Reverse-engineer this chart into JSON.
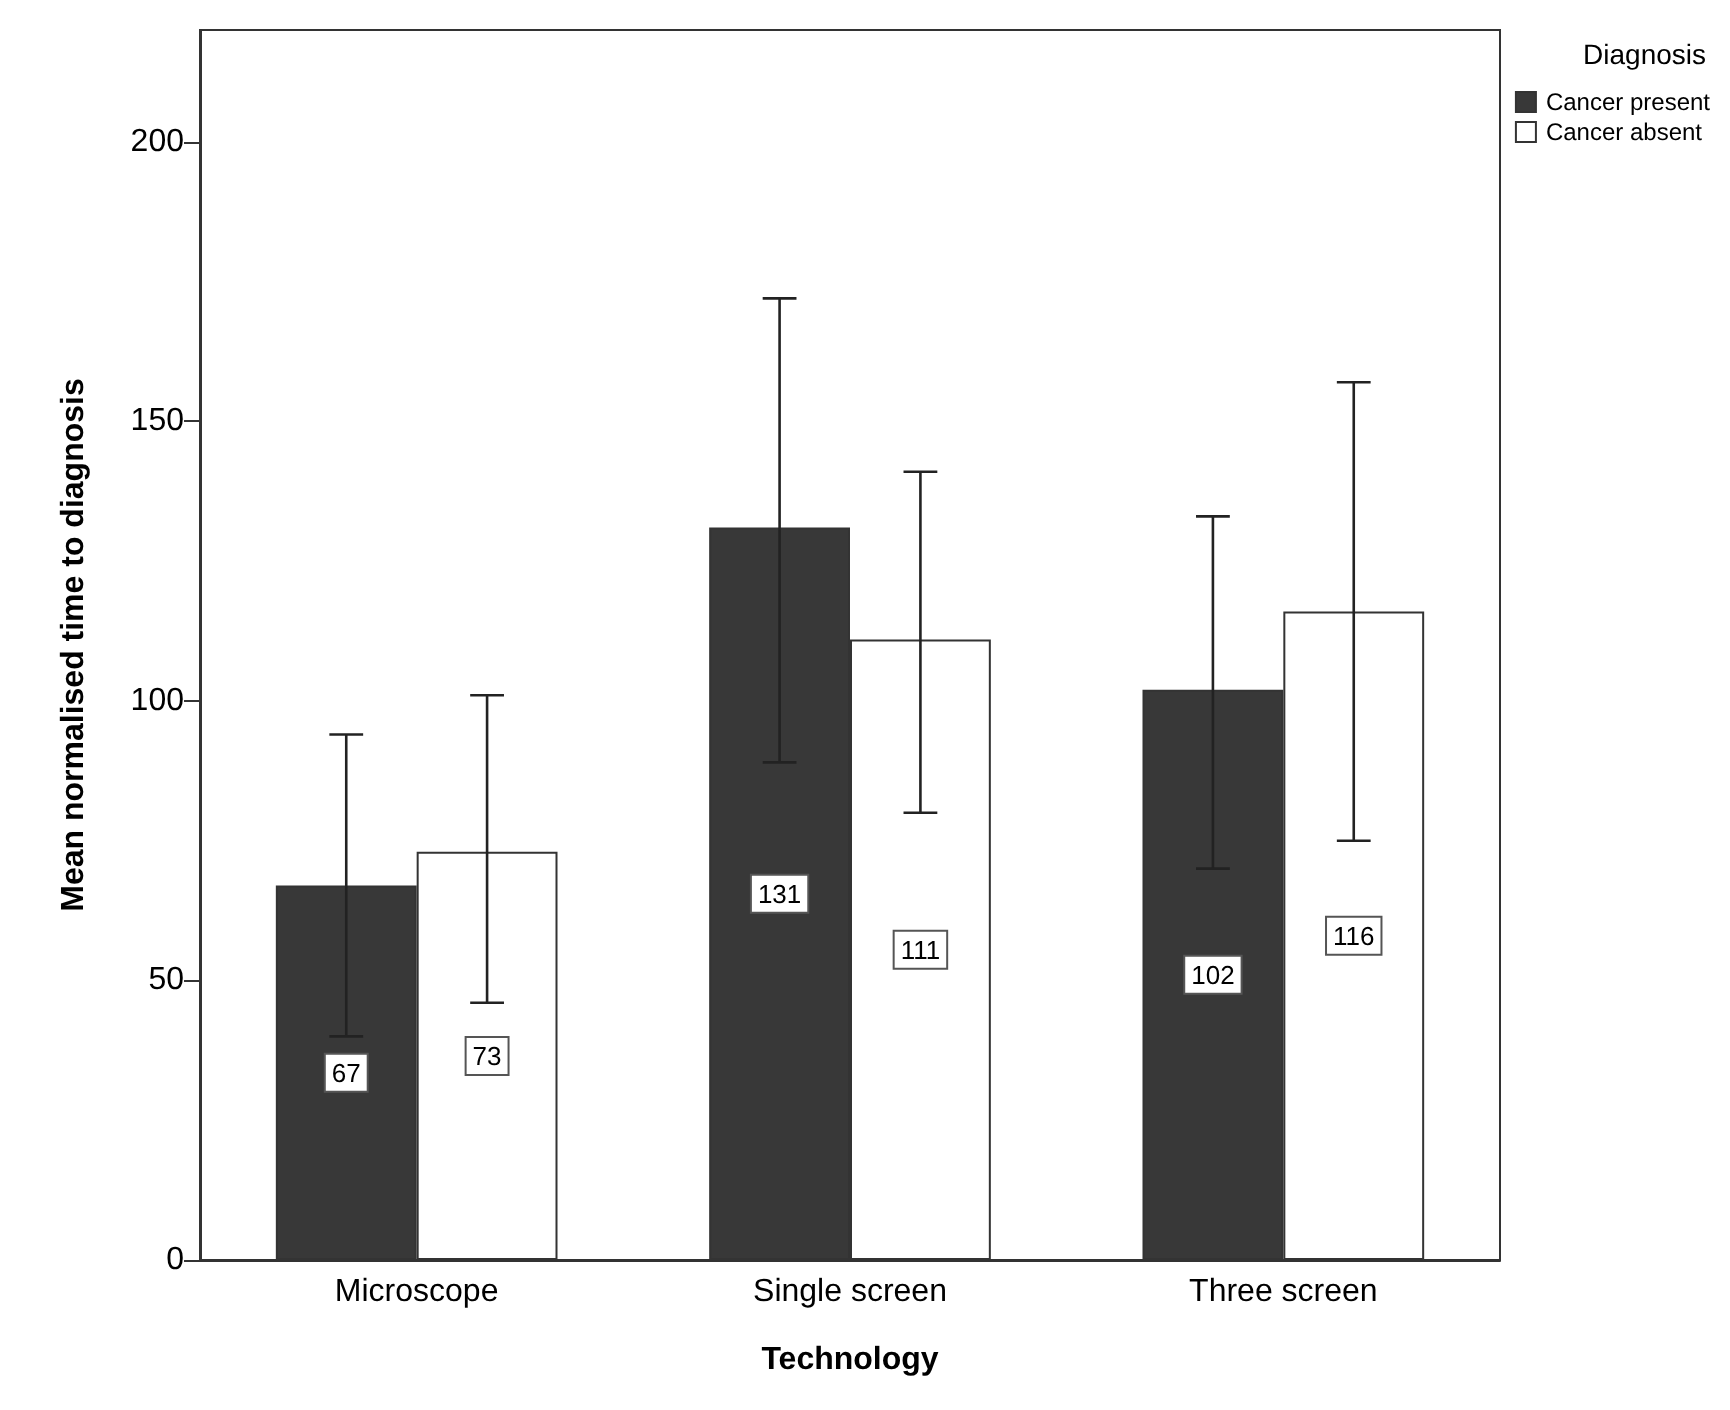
{
  "chart_data": {
    "type": "bar",
    "xlabel": "Technology",
    "ylabel": "Mean normalised time to diagnosis",
    "legend_title": "Diagnosis",
    "categories": [
      "Microscope",
      "Single screen",
      "Three screen"
    ],
    "series": [
      {
        "name": "Cancer present",
        "color": "#383838",
        "values": [
          67,
          131,
          102
        ],
        "errors": [
          [
            40,
            94
          ],
          [
            89,
            172
          ],
          [
            70,
            133
          ]
        ]
      },
      {
        "name": "Cancer absent",
        "color": "#ffffff",
        "values": [
          73,
          111,
          116
        ],
        "errors": [
          [
            46,
            101
          ],
          [
            80,
            141
          ],
          [
            75,
            157
          ]
        ]
      }
    ],
    "ylim": [
      0,
      220
    ],
    "yticks": [
      0,
      50,
      100,
      150,
      200
    ],
    "grid": false,
    "legend": "top right",
    "data_labels": true
  }
}
